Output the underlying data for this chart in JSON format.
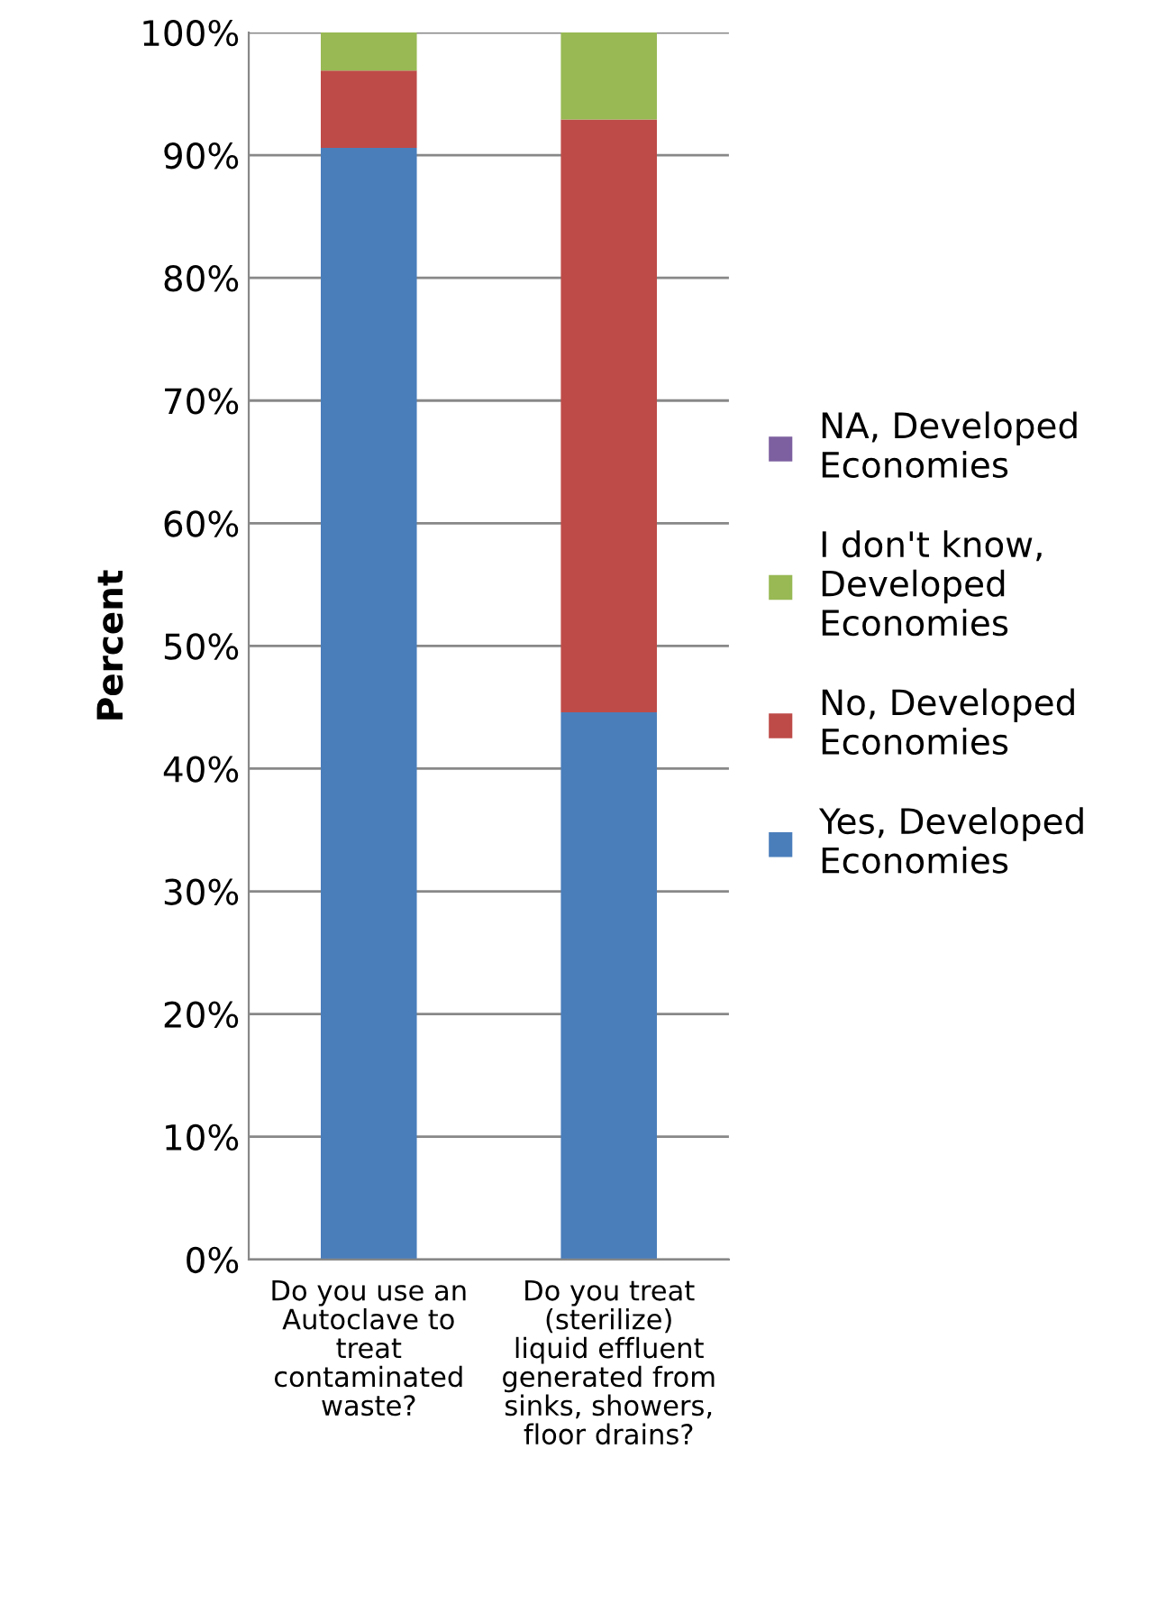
{
  "chart_data": {
    "type": "bar",
    "stacked": true,
    "ylabel": "Percent",
    "categories": [
      "Do you use an Autoclave to treat contaminated waste?",
      "Do you treat (sterilize) liquid effluent generated from sinks, showers, floor drains?"
    ],
    "series": [
      {
        "name": "Yes, Developed Economies",
        "color": "#4a7ebb",
        "values": [
          90.6,
          44.6
        ]
      },
      {
        "name": "No, Developed Economies",
        "color": "#be4b48",
        "values": [
          6.3,
          48.3
        ]
      },
      {
        "name": "I don't know, Developed Economies",
        "color": "#98b954",
        "values": [
          3.1,
          7.1
        ]
      },
      {
        "name": "NA, Developed Economies",
        "color": "#7d60a0",
        "values": [
          0,
          0
        ]
      }
    ],
    "ylim": [
      0,
      100
    ],
    "yticks": [
      {
        "value": 0,
        "label": "0%"
      },
      {
        "value": 10,
        "label": "10%"
      },
      {
        "value": 20,
        "label": "20%"
      },
      {
        "value": 30,
        "label": "30%"
      },
      {
        "value": 40,
        "label": "40%"
      },
      {
        "value": 50,
        "label": "50%"
      },
      {
        "value": 60,
        "label": "60%"
      },
      {
        "value": 70,
        "label": "70%"
      },
      {
        "value": 80,
        "label": "80%"
      },
      {
        "value": 90,
        "label": "90%"
      },
      {
        "value": 100,
        "label": "100%"
      }
    ],
    "grid": "y",
    "legend": "right"
  }
}
